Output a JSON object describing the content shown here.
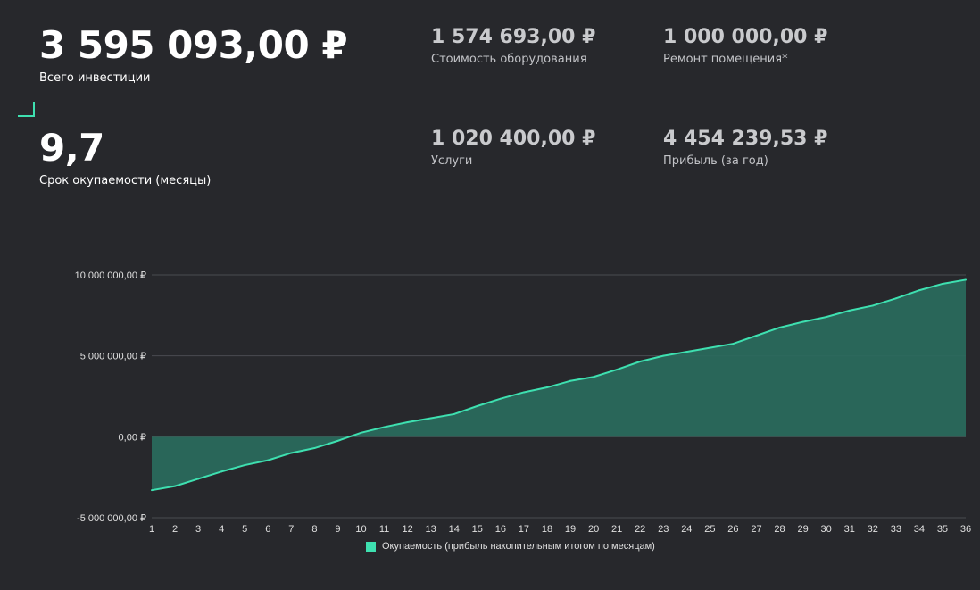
{
  "metrics": {
    "total_investment": {
      "value": "3 595 093,00 ₽",
      "label": "Всего инвестиции"
    },
    "payback": {
      "value": "9,7",
      "label": "Срок окупаемости (месяцы)"
    },
    "equipment": {
      "value": "1 574 693,00 ₽",
      "label": "Стоимость оборудования"
    },
    "renovation": {
      "value": "1 000 000,00 ₽",
      "label": "Ремонт помещения*"
    },
    "services": {
      "value": "1 020 400,00 ₽",
      "label": "Услуги"
    },
    "profit": {
      "value": "4 454 239,53 ₽",
      "label": "Прибыль (за год)"
    }
  },
  "colors": {
    "line": "#3ee0b0",
    "area": "#2a6d5e",
    "grid": "#4a4b50",
    "background": "#27282c"
  },
  "chart_data": {
    "type": "area",
    "title": "",
    "xlabel": "",
    "ylabel": "",
    "x": [
      1,
      2,
      3,
      4,
      5,
      6,
      7,
      8,
      9,
      10,
      11,
      12,
      13,
      14,
      15,
      16,
      17,
      18,
      19,
      20,
      21,
      22,
      23,
      24,
      25,
      26,
      27,
      28,
      29,
      30,
      31,
      32,
      33,
      34,
      35,
      36
    ],
    "series": [
      {
        "name": "Окупаемость (прибыль накопительным итогом по месяцам)",
        "values": [
          -3300000,
          -3050000,
          -2600000,
          -2150000,
          -1750000,
          -1450000,
          -1000000,
          -700000,
          -250000,
          250000,
          600000,
          900000,
          1150000,
          1400000,
          1900000,
          2350000,
          2750000,
          3050000,
          3450000,
          3700000,
          4150000,
          4650000,
          5000000,
          5250000,
          5500000,
          5750000,
          6250000,
          6750000,
          7100000,
          7400000,
          7800000,
          8100000,
          8550000,
          9050000,
          9450000,
          9700000
        ]
      }
    ],
    "ylim": [
      -5000000,
      10000000
    ],
    "yticks": [
      {
        "value": -5000000,
        "label": "-5 000 000,00 ₽"
      },
      {
        "value": 0,
        "label": "0,00 ₽"
      },
      {
        "value": 5000000,
        "label": "5 000 000,00 ₽"
      },
      {
        "value": 10000000,
        "label": "10 000 000,00 ₽"
      }
    ],
    "grid": true,
    "legend_position": "bottom"
  }
}
